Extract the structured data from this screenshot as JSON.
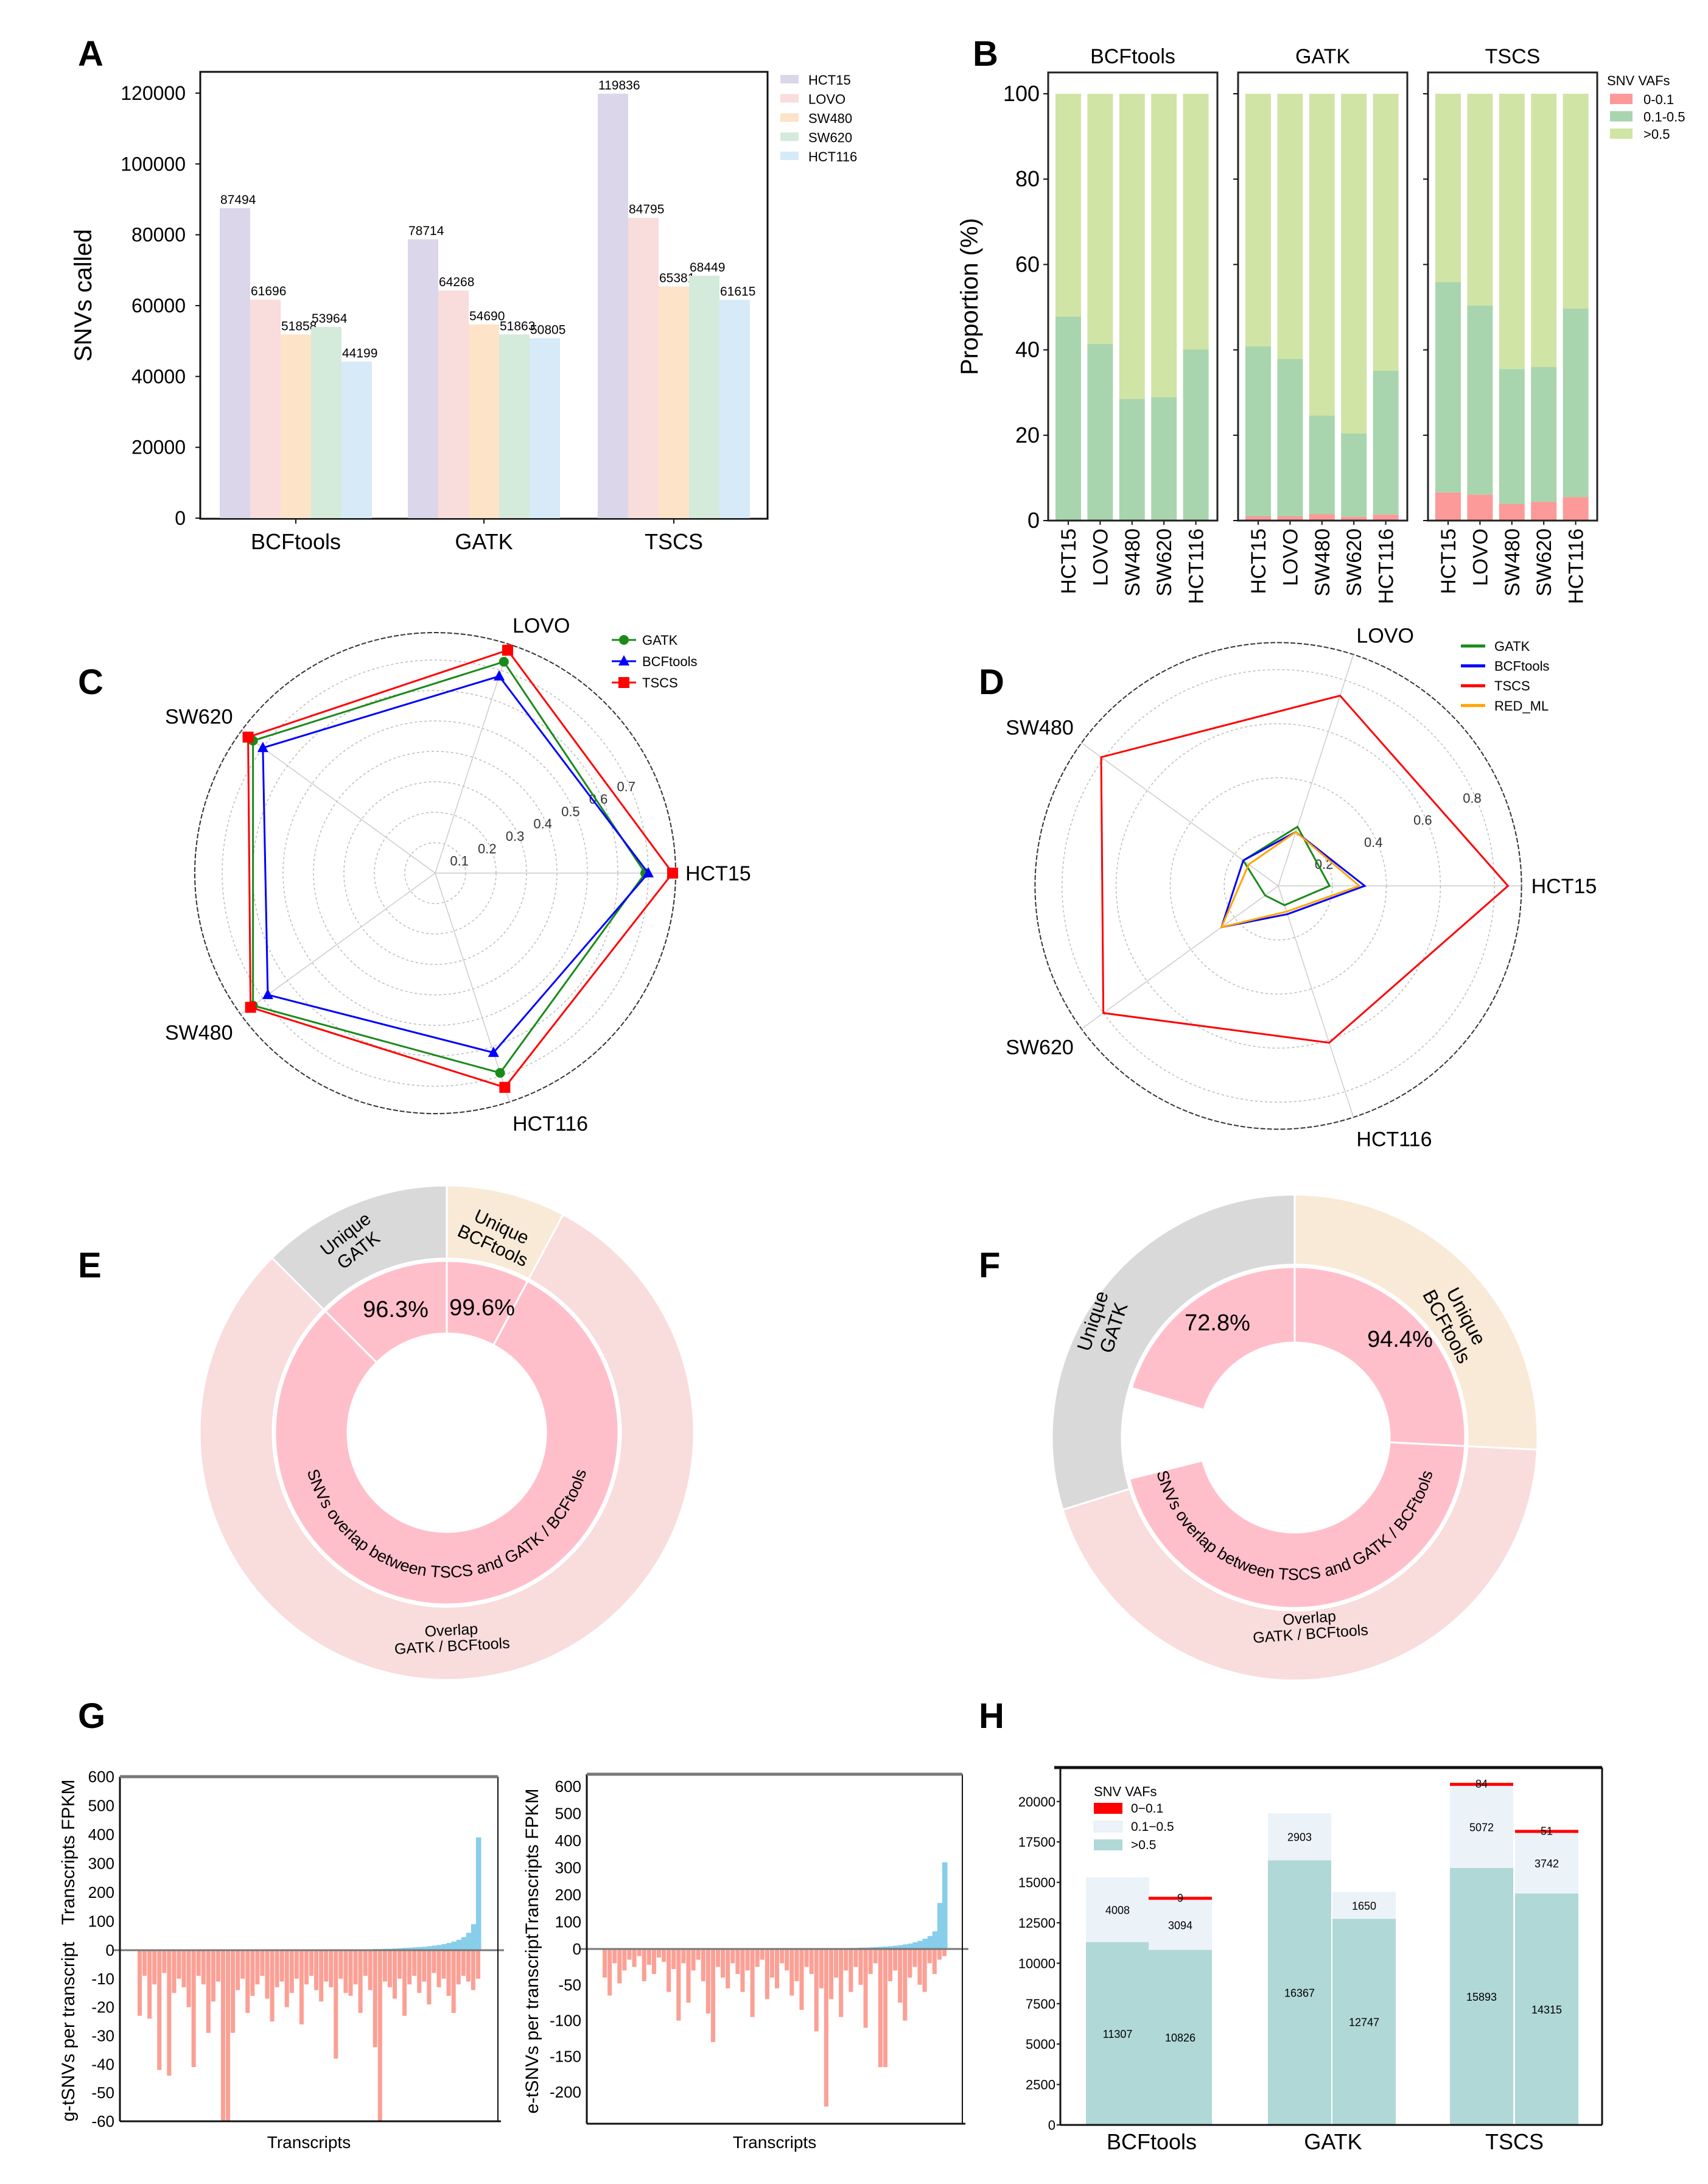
{
  "panel_labels": [
    "A",
    "B",
    "C",
    "D",
    "E",
    "F",
    "G",
    "H"
  ],
  "chart_data": [
    {
      "type": "bar",
      "categories": [
        "BCFtools",
        "GATK",
        "TSCS"
      ],
      "series": [
        {
          "name": "HCT15",
          "values": [
            87494,
            78714,
            119836
          ],
          "color": "#dcd6ea"
        },
        {
          "name": "LOVO",
          "values": [
            61696,
            64268,
            84795
          ],
          "color": "#f9dcdc"
        },
        {
          "name": "SW480",
          "values": [
            51858,
            54690,
            65381
          ],
          "color": "#fde3c8"
        },
        {
          "name": "SW620",
          "values": [
            53964,
            51863,
            68449
          ],
          "color": "#d4eadb"
        },
        {
          "name": "HCT116",
          "values": [
            44199,
            50805,
            61615
          ],
          "color": "#d6eaf8"
        }
      ],
      "data_labels": [
        [
          "87494",
          "78714",
          "119836"
        ],
        [
          "61696",
          "64268",
          "84795"
        ],
        [
          "51858",
          "54690",
          "65381"
        ],
        [
          "53964",
          "51863",
          "68449"
        ],
        [
          "44199",
          "50805",
          "61615"
        ]
      ],
      "ylabel": "SNVs called",
      "yticks": [
        0,
        20000,
        40000,
        60000,
        80000,
        100000,
        120000
      ],
      "ytick_labels": [
        "0",
        "20000",
        "40000",
        "60000",
        "80000",
        "100000",
        "120000"
      ],
      "ylim": [
        0,
        126000
      ],
      "legend": "top-right, outside"
    },
    {
      "type": "bar",
      "stacked": true,
      "ylabel": "Proportion (%)",
      "yticks": [
        0,
        20,
        40,
        60,
        80,
        100
      ],
      "ytick_labels": [
        "0",
        "20",
        "40",
        "60",
        "80",
        "100"
      ],
      "ylim": [
        0,
        105
      ],
      "legend_title": "SNV VAFs",
      "series_names": [
        "0-0.1",
        "0.1-0.5",
        ">0.5"
      ],
      "colors": [
        "#fb9a99",
        "#a8d5ad",
        "#d0e4a6"
      ],
      "categories": [
        "HCT15",
        "LOVO",
        "SW480",
        "SW620",
        "HCT116"
      ],
      "facets": [
        {
          "title": "BCFtools",
          "series": [
            [
              0,
              0,
              0,
              0,
              0
            ],
            [
              47.8,
              41.4,
              28.5,
              28.9,
              40.1
            ],
            [
              52.2,
              58.6,
              71.5,
              71.1,
              59.9
            ]
          ]
        },
        {
          "title": "GATK",
          "series": [
            [
              1.0,
              1.0,
              1.5,
              0.9,
              1.4
            ],
            [
              39.8,
              36.9,
              23.1,
              19.5,
              33.7
            ],
            [
              59.2,
              62.1,
              75.4,
              79.6,
              64.9
            ]
          ]
        },
        {
          "title": "TSCS",
          "series": [
            [
              6.6,
              6.1,
              3.9,
              4.4,
              5.5
            ],
            [
              49.3,
              44.3,
              31.6,
              31.6,
              44.2
            ],
            [
              44.1,
              49.6,
              64.5,
              64.0,
              50.3
            ]
          ]
        }
      ]
    },
    {
      "type": "radar",
      "axes": [
        "HCT15",
        "LOVO",
        "SW620",
        "SW480",
        "HCT116"
      ],
      "rticks": [
        0.1,
        0.2,
        0.3,
        0.4,
        0.5,
        0.6,
        0.7
      ],
      "rtick_labels": [
        "0.1",
        "0.2",
        "0.3",
        "0.4",
        "0.5",
        "0.6",
        "0.7"
      ],
      "rlim": [
        0,
        0.79
      ],
      "series": [
        {
          "name": "GATK",
          "values": [
            0.69,
            0.73,
            0.74,
            0.74,
            0.69
          ],
          "color": "#1a8a1a",
          "marker": "circle"
        },
        {
          "name": "BCFtools",
          "values": [
            0.7,
            0.68,
            0.7,
            0.68,
            0.62
          ],
          "color": "#0000ff",
          "marker": "triangle"
        },
        {
          "name": "TSCS",
          "values": [
            0.78,
            0.77,
            0.76,
            0.75,
            0.74
          ],
          "color": "#ff0000",
          "marker": "square"
        }
      ],
      "legend": "top-right"
    },
    {
      "type": "radar",
      "axes": [
        "HCT15",
        "LOVO",
        "SW480",
        "SW620",
        "HCT116"
      ],
      "rticks": [
        0.2,
        0.4,
        0.6,
        0.8
      ],
      "rtick_labels": [
        "0.2",
        "0.4",
        "0.6",
        "0.8"
      ],
      "rlim": [
        0,
        0.9
      ],
      "series": [
        {
          "name": "GATK",
          "values": [
            0.19,
            0.23,
            0.16,
            0.06,
            0.075
          ],
          "color": "#1a8a1a"
        },
        {
          "name": "BCFtools",
          "values": [
            0.32,
            0.21,
            0.16,
            0.26,
            0.11
          ],
          "color": "#0000ff"
        },
        {
          "name": "TSCS",
          "values": [
            0.85,
            0.74,
            0.81,
            0.8,
            0.61
          ],
          "color": "#ff0000"
        },
        {
          "name": "RED_ML",
          "values": [
            0.3,
            0.21,
            0.135,
            0.26,
            0.1
          ],
          "color": "#ffa500"
        }
      ],
      "legend": "top-right"
    },
    {
      "type": "pie",
      "style": "nested donut",
      "outer": [
        {
          "label_lines": [
            "Unique",
            "BCFtools"
          ],
          "fraction": 0.078,
          "color": "#f8ead6"
        },
        {
          "label_lines": [
            "Overlap",
            "GATK / BCFtools"
          ],
          "fraction": 0.797,
          "color": "#f9dcdc"
        },
        {
          "label_lines": [
            "Unique",
            "GATK"
          ],
          "fraction": 0.125,
          "color": "#d9d9d9"
        }
      ],
      "inner": [
        {
          "label": "99.6%",
          "fraction": 0.078,
          "color": "#ffbfca"
        },
        {
          "label": "SNVs overlap between TSCS and GATK / BCFtools",
          "fraction": 0.797,
          "color": "#ffbfca"
        },
        {
          "label": "96.3%",
          "fraction": 0.125,
          "color": "#ffbfca"
        }
      ]
    },
    {
      "type": "pie",
      "style": "nested donut",
      "outer": [
        {
          "label_lines": [
            "Unique",
            "BCFtools"
          ],
          "fraction": 0.258,
          "color": "#f8ead6"
        },
        {
          "label_lines": [
            "Overlap",
            "GATK / BCFtools"
          ],
          "fraction": 0.444,
          "color": "#f9dcdc"
        },
        {
          "label_lines": [
            "Unique",
            "GATK"
          ],
          "fraction": 0.298,
          "color": "#d9d9d9"
        }
      ],
      "inner": [
        {
          "label": "94.4%",
          "fraction": 0.258,
          "color": "#ffbfca"
        },
        {
          "label": "SNVs overlap between TSCS and GATK / BCFtools",
          "fraction": 0.453,
          "color": "#ffbfca"
        },
        {
          "label": "",
          "fraction": 0.086,
          "color": "#ffffff"
        },
        {
          "label": "72.8%",
          "fraction": 0.203,
          "color": "#ffbfca"
        }
      ]
    },
    {
      "type": "bar",
      "subplots": [
        {
          "ylabel_top": "Transcripts FPKM",
          "ylabel_bottom": "g-tSNVs per transcript",
          "xlabel": "Transcripts",
          "yticks_top": [
            0,
            100,
            200,
            300,
            400,
            500,
            600
          ],
          "yticks_bottom": [
            -10,
            -20,
            -30,
            -40,
            -50,
            -60
          ],
          "ylim_top": [
            0,
            600
          ],
          "ylim_bottom": [
            -60,
            0
          ],
          "fpkm_color": "#87ceeb",
          "tsnv_color": "#fa8072",
          "fpkm": [
            0,
            0,
            0,
            0,
            0,
            0,
            0,
            0,
            0,
            0,
            0,
            0,
            0,
            0,
            0,
            0,
            0,
            0,
            0,
            0,
            0,
            0,
            0,
            0,
            0,
            0,
            0,
            0,
            0,
            0,
            0,
            0,
            0,
            0,
            0,
            0,
            0,
            0,
            1,
            1,
            1,
            1,
            2,
            2,
            2,
            3,
            3,
            3,
            4,
            4,
            5,
            5,
            6,
            7,
            8,
            9,
            10,
            11,
            12,
            14,
            16,
            18,
            21,
            25,
            30,
            36,
            45,
            60,
            90,
            390
          ],
          "tsnv": [
            -23,
            -9,
            -24,
            -12,
            -42,
            -8,
            -44,
            -15,
            -10,
            -13,
            -20,
            -41,
            -9,
            -12,
            -29,
            -18,
            -11,
            -60,
            -60,
            -29,
            -14,
            -10,
            -22,
            -16,
            -12,
            -9,
            -17,
            -25,
            -13,
            -11,
            -20,
            -15,
            -10,
            -26,
            -12,
            -9,
            -14,
            -18,
            -11,
            -13,
            -38,
            -10,
            -15,
            -16,
            -12,
            -22,
            -9,
            -14,
            -34,
            -60,
            -11,
            -13,
            -17,
            -10,
            -23,
            -12,
            -9,
            -15,
            -11,
            -19,
            -8,
            -13,
            -10,
            -16,
            -22,
            -12,
            -9,
            -11,
            -14,
            -10
          ]
        },
        {
          "ylabel_top": "Transcripts FPKM",
          "ylabel_bottom": "e-tSNVs per transcript",
          "xlabel": "Transcripts",
          "yticks_top": [
            0,
            100,
            200,
            300,
            400,
            500,
            600
          ],
          "yticks_bottom": [
            -50,
            -100,
            -150,
            -200
          ],
          "ylim_top": [
            0,
            645
          ],
          "ylim_bottom": [
            -244,
            0
          ],
          "fpkm_color": "#87ceeb",
          "tsnv_color": "#fa8072",
          "fpkm": [
            0,
            0,
            0,
            0,
            0,
            0,
            0,
            0,
            0,
            0,
            0,
            0,
            0,
            0,
            0,
            0,
            0,
            0,
            0,
            0,
            0,
            0,
            0,
            0,
            0,
            0,
            0,
            0,
            0,
            0,
            0,
            0,
            0,
            0,
            0,
            0,
            0,
            0,
            0,
            0,
            0,
            0,
            1,
            1,
            1,
            2,
            2,
            2,
            3,
            3,
            4,
            4,
            5,
            5,
            6,
            7,
            8,
            9,
            10,
            12,
            14,
            17,
            20,
            25,
            30,
            38,
            48,
            65,
            170,
            320
          ],
          "tsnv": [
            -40,
            -65,
            -20,
            -48,
            -30,
            -15,
            -25,
            -10,
            -45,
            -22,
            -35,
            -12,
            -18,
            -60,
            -28,
            -100,
            -20,
            -75,
            -30,
            -15,
            -45,
            -90,
            -130,
            -25,
            -40,
            -55,
            -20,
            -35,
            -60,
            -30,
            -95,
            -25,
            -15,
            -70,
            -40,
            -55,
            -20,
            -30,
            -65,
            -45,
            -85,
            -25,
            -35,
            -115,
            -55,
            -220,
            -70,
            -40,
            -95,
            -30,
            -60,
            -25,
            -50,
            -110,
            -35,
            -20,
            -165,
            -165,
            -45,
            -30,
            -75,
            -100,
            -40,
            -25,
            -50,
            -60,
            -20,
            -35,
            -15,
            -10
          ]
        }
      ]
    },
    {
      "type": "bar",
      "stacked": true,
      "categories": [
        "BCFtools",
        "GATK",
        "TSCS"
      ],
      "legend_title": "SNV VAFs",
      "series_names": [
        "0−0.1",
        "0.1−0.5",
        ">0.5"
      ],
      "colors": [
        "#ff0000",
        "#ebf2f8",
        "#b0d8d6"
      ],
      "yticks": [
        0,
        2500,
        5000,
        7500,
        10000,
        12500,
        15000,
        17500,
        20000
      ],
      "ytick_labels": [
        "0",
        "2500",
        "5000",
        "7500",
        "10000",
        "12500",
        "15000",
        "17500",
        "20000"
      ],
      "ylim": [
        0,
        22100
      ],
      "bars": [
        {
          "category": 0,
          "values": [
            0,
            4008,
            11307
          ],
          "labels": [
            "",
            "4008",
            "11307"
          ]
        },
        {
          "category": 0,
          "values": [
            9,
            3094,
            10826
          ],
          "labels": [
            "9",
            "3094",
            "10826"
          ]
        },
        {
          "category": 1,
          "values": [
            0,
            2903,
            16367
          ],
          "labels": [
            "",
            "2903",
            "16367"
          ]
        },
        {
          "category": 1,
          "values": [
            0,
            1650,
            12747
          ],
          "labels": [
            "",
            "1650",
            "12747"
          ]
        },
        {
          "category": 2,
          "values": [
            84,
            5072,
            15893
          ],
          "labels": [
            "84",
            "5072",
            "15893"
          ]
        },
        {
          "category": 2,
          "values": [
            51,
            3742,
            14315
          ],
          "labels": [
            "51",
            "3742",
            "14315"
          ]
        }
      ],
      "legend": "top-left"
    }
  ]
}
